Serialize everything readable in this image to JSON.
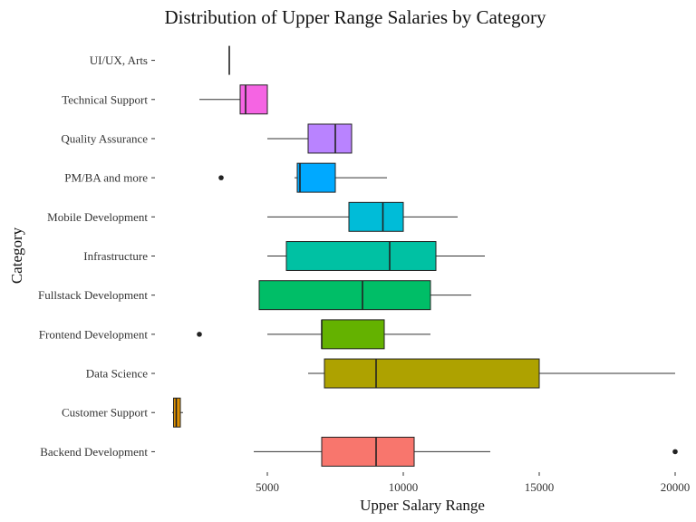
{
  "chart_data": {
    "type": "boxplot",
    "title": "Distribution of Upper Range Salaries by Category",
    "xlabel": "Upper Salary Range",
    "ylabel": "Category",
    "xlim": [
      1000,
      20500
    ],
    "x_ticks": [
      5000,
      10000,
      15000,
      20000
    ],
    "grid": false,
    "legend": "none",
    "categories": [
      "UI/UX, Arts",
      "Technical Support",
      "Quality Assurance",
      "PM/BA and more",
      "Mobile Development",
      "Infrastructure",
      "Fullstack Development",
      "Frontend Development",
      "Data Science",
      "Customer Support",
      "Backend Development"
    ],
    "series": [
      {
        "category": "UI/UX, Arts",
        "color": "#FF61CC",
        "min": 3600,
        "q1": 3600,
        "median": 3600,
        "q3": 3600,
        "max": 3600,
        "outliers": []
      },
      {
        "category": "Technical Support",
        "color": "#F564E3",
        "min": 2500,
        "q1": 4000,
        "median": 4200,
        "q3": 5000,
        "max": 5000,
        "outliers": []
      },
      {
        "category": "Quality Assurance",
        "color": "#B983FF",
        "min": 5000,
        "q1": 6500,
        "median": 7500,
        "q3": 8100,
        "max": 8100,
        "outliers": []
      },
      {
        "category": "PM/BA and more",
        "color": "#00A9FF",
        "min": 6000,
        "q1": 6100,
        "median": 6200,
        "q3": 7500,
        "max": 9400,
        "outliers": [
          3300
        ]
      },
      {
        "category": "Mobile Development",
        "color": "#00BCD8",
        "min": 5000,
        "q1": 8000,
        "median": 9250,
        "q3": 10000,
        "max": 12000,
        "outliers": []
      },
      {
        "category": "Infrastructure",
        "color": "#00C1A3",
        "min": 5000,
        "q1": 5700,
        "median": 9500,
        "q3": 11200,
        "max": 13000,
        "outliers": []
      },
      {
        "category": "Fullstack Development",
        "color": "#00BE67",
        "min": 4700,
        "q1": 4700,
        "median": 8500,
        "q3": 11000,
        "max": 12500,
        "outliers": []
      },
      {
        "category": "Frontend Development",
        "color": "#64B200",
        "min": 5000,
        "q1": 7000,
        "median": 7000,
        "q3": 9300,
        "max": 11000,
        "outliers": [
          2500
        ]
      },
      {
        "category": "Data Science",
        "color": "#AEA200",
        "min": 6500,
        "q1": 7100,
        "median": 9000,
        "q3": 15000,
        "max": 20000,
        "outliers": []
      },
      {
        "category": "Customer Support",
        "color": "#DB8E00",
        "min": 1500,
        "q1": 1550,
        "median": 1650,
        "q3": 1800,
        "max": 1900,
        "outliers": []
      },
      {
        "category": "Backend Development",
        "color": "#F8766D",
        "min": 4500,
        "q1": 7000,
        "median": 9000,
        "q3": 10400,
        "max": 13200,
        "outliers": [
          20000
        ]
      }
    ]
  }
}
